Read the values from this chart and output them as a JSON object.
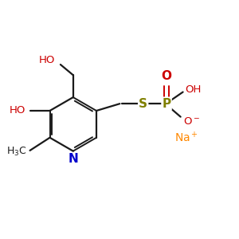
{
  "bg_color": "#ffffff",
  "bond_color": "#1a1a1a",
  "N_color": "#0000cc",
  "O_color": "#cc0000",
  "S_color": "#808000",
  "P_color": "#808000",
  "Na_color": "#ff8800",
  "figsize": [
    3.0,
    3.0
  ],
  "dpi": 100,
  "xlim": [
    0,
    10
  ],
  "ylim": [
    0,
    10
  ]
}
